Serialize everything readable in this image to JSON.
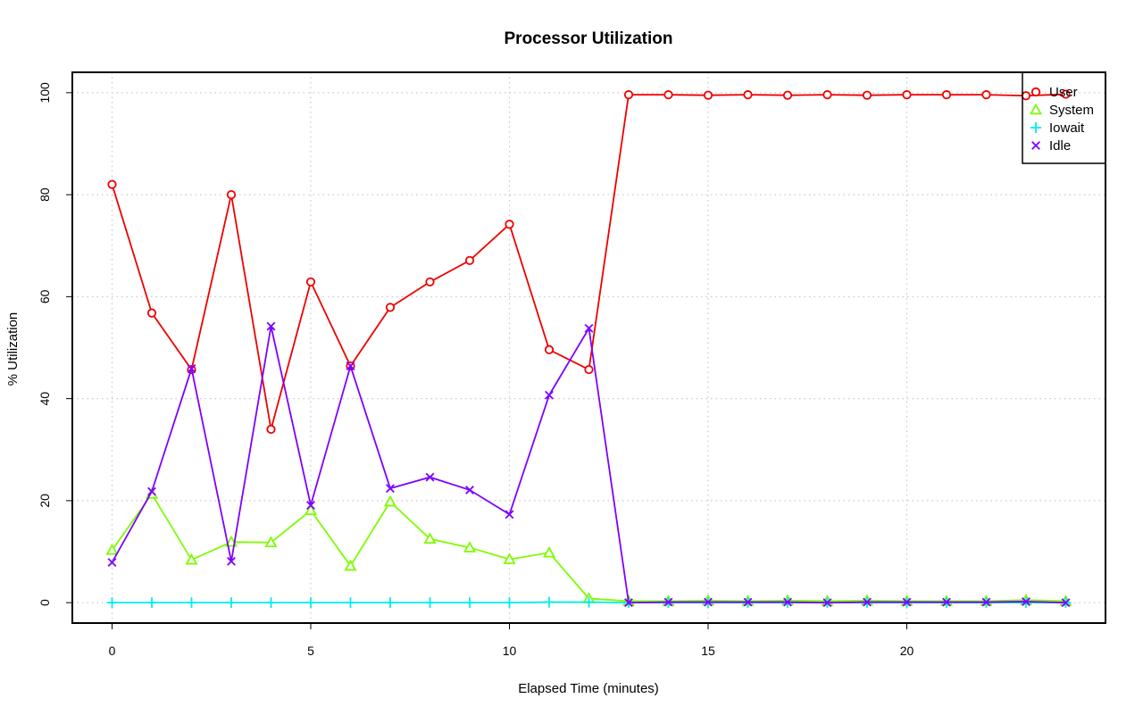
{
  "chart_data": {
    "type": "line",
    "title": "Processor Utilization",
    "xlabel": "Elapsed Time (minutes)",
    "ylabel": "% Utilization",
    "xlim": [
      -1,
      25
    ],
    "ylim": [
      -4,
      104
    ],
    "x_ticks": [
      0,
      5,
      10,
      15,
      20
    ],
    "y_ticks": [
      0,
      20,
      40,
      60,
      80,
      100
    ],
    "grid": true,
    "legend_position": "top-right",
    "x": [
      0,
      1,
      2,
      3,
      4,
      5,
      6,
      7,
      8,
      9,
      10,
      11,
      12,
      13,
      14,
      15,
      16,
      17,
      18,
      19,
      20,
      21,
      22,
      23,
      24
    ],
    "series": [
      {
        "name": "User",
        "color": "#ee0000",
        "marker": "circle",
        "values": [
          82,
          56.8,
          45.7,
          80,
          34,
          62.9,
          46.4,
          57.9,
          62.9,
          67.1,
          74.2,
          49.6,
          45.7,
          99.6,
          99.6,
          99.5,
          99.6,
          99.5,
          99.6,
          99.5,
          99.6,
          99.6,
          99.6,
          99.4,
          99.7
        ]
      },
      {
        "name": "System",
        "color": "#7cfc00",
        "marker": "triangle",
        "values": [
          10.3,
          21.3,
          8.4,
          11.9,
          11.8,
          18.1,
          7.2,
          19.8,
          12.5,
          10.8,
          8.5,
          9.8,
          0.8,
          0.3,
          0.3,
          0.4,
          0.3,
          0.4,
          0.3,
          0.4,
          0.3,
          0.3,
          0.3,
          0.5,
          0.3
        ]
      },
      {
        "name": "Iowait",
        "color": "#00eeee",
        "marker": "plus",
        "values": [
          0,
          0,
          0,
          0,
          0,
          0,
          0,
          0,
          0,
          0,
          0,
          0.1,
          0.1,
          0,
          0,
          0,
          0,
          0,
          0,
          0,
          0,
          0,
          0,
          0,
          0
        ]
      },
      {
        "name": "Idle",
        "color": "#7f00ff",
        "marker": "cross",
        "values": [
          7.9,
          21.8,
          45.9,
          8.1,
          54.2,
          19.1,
          46.4,
          22.4,
          24.6,
          22.1,
          17.3,
          40.7,
          53.8,
          0,
          0.1,
          0.1,
          0.1,
          0.1,
          0,
          0.1,
          0.1,
          0.1,
          0.1,
          0.2,
          0
        ]
      }
    ]
  }
}
